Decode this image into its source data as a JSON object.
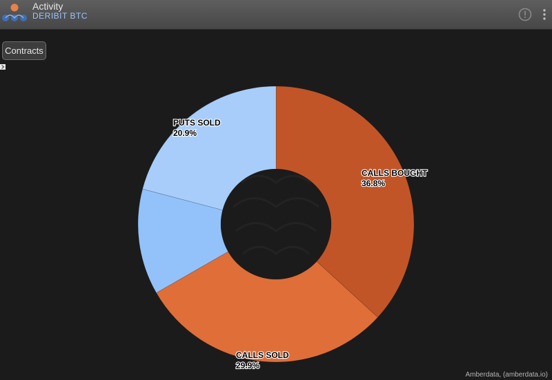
{
  "header": {
    "title": "Activity",
    "subtitle": "DERIBIT BTC"
  },
  "controls": {
    "contracts_label": "Contracts"
  },
  "credit": "Amberdata, (amberdata.io)",
  "chart_data": {
    "type": "pie",
    "variant": "donut",
    "start_angle_deg": 0,
    "direction": "clockwise",
    "slices": [
      {
        "label": "CALLS BOUGHT",
        "value": 36.8,
        "value_label": "36.8%",
        "color": "#c25527",
        "show_label": true
      },
      {
        "label": "CALLS SOLD",
        "value": 29.9,
        "value_label": "29.9%",
        "color": "#e06e38",
        "show_label": true
      },
      {
        "label": "",
        "value": 12.4,
        "value_label": "",
        "color": "#93c2fb",
        "show_label": false
      },
      {
        "label": "PUTS SOLD",
        "value": 20.9,
        "value_label": "20.9%",
        "color": "#a8cdfa",
        "show_label": true
      }
    ]
  },
  "icons": {
    "info": "info-circle-icon",
    "menu": "vertical-dots-menu-icon",
    "logo": "amberdata-logo-icon",
    "expand": "chevron-right-icon"
  }
}
